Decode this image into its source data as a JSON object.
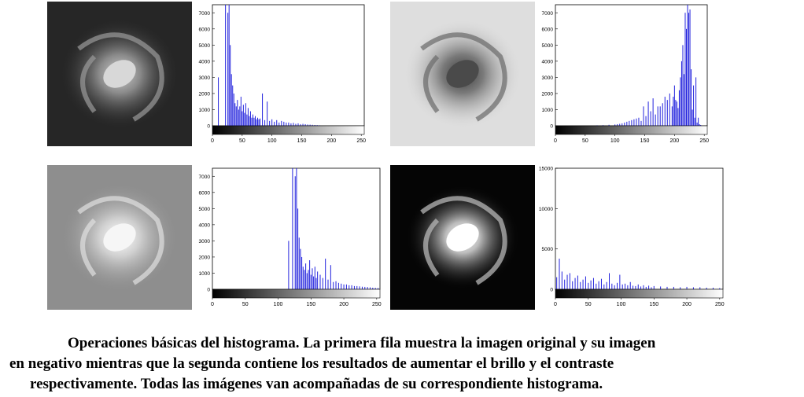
{
  "figure": {
    "caption_line1": "Operaciones básicas del histograma. La primera fila muestra la imagen original y su imagen",
    "caption_line2": "en negativo mientras que la segunda contiene los resultados de aumentar el brillo y el contraste",
    "caption_line3": "respectivamente. Todas las imágenes van acompañadas de su correspondiente histograma.",
    "panels": [
      {
        "id": "original",
        "photo_style": "dark",
        "bg": "#2a2a2a",
        "core": "#bdbdbd",
        "arm": "#7a7a7a"
      },
      {
        "id": "negativo",
        "photo_style": "inverted",
        "bg": "#dcdcdc",
        "core": "#555555",
        "arm": "#8a8a8a"
      },
      {
        "id": "brillo",
        "photo_style": "bright",
        "bg": "#8e8e8e",
        "core": "#f4f4f4",
        "arm": "#d6d6d6"
      },
      {
        "id": "contraste",
        "photo_style": "contrast",
        "bg": "#050505",
        "core": "#ffffff",
        "arm": "#b0b0b0"
      }
    ]
  },
  "chart_data": [
    {
      "type": "bar",
      "title": "",
      "xlabel": "",
      "ylabel": "",
      "xlim": [
        0,
        255
      ],
      "ylim": [
        0,
        7500
      ],
      "xticks": [
        "0",
        "50",
        "100",
        "150",
        "200",
        "250"
      ],
      "yticks": [
        "0",
        "1000",
        "2000",
        "3000",
        "4000",
        "5000",
        "6000",
        "7000"
      ],
      "bar_color": "#2222dd",
      "x": [
        10,
        22,
        26,
        28,
        30,
        32,
        34,
        36,
        38,
        40,
        42,
        44,
        46,
        48,
        50,
        52,
        54,
        56,
        58,
        60,
        62,
        64,
        66,
        68,
        70,
        72,
        74,
        76,
        78,
        80,
        84,
        88,
        92,
        96,
        100,
        104,
        108,
        112,
        116,
        120,
        124,
        128,
        132,
        136,
        140,
        144,
        148,
        152,
        156,
        160,
        164,
        168,
        172,
        176,
        180
      ],
      "values": [
        3000,
        7500,
        7000,
        7500,
        5000,
        3200,
        2500,
        2000,
        1400,
        1200,
        1600,
        1000,
        1200,
        1800,
        900,
        1300,
        800,
        1400,
        700,
        1100,
        600,
        900,
        500,
        700,
        500,
        600,
        400,
        500,
        400,
        450,
        2000,
        350,
        1500,
        300,
        400,
        250,
        350,
        200,
        300,
        250,
        200,
        200,
        150,
        180,
        120,
        150,
        100,
        120,
        100,
        80,
        70,
        60,
        50,
        40,
        30
      ]
    },
    {
      "type": "bar",
      "title": "",
      "xlabel": "",
      "ylabel": "",
      "xlim": [
        0,
        255
      ],
      "ylim": [
        0,
        7500
      ],
      "xticks": [
        "0",
        "50",
        "100",
        "150",
        "200",
        "250"
      ],
      "yticks": [
        "0",
        "1000",
        "2000",
        "3000",
        "4000",
        "5000",
        "6000",
        "7000"
      ],
      "bar_color": "#2222dd",
      "x": [
        70,
        80,
        90,
        100,
        104,
        108,
        112,
        116,
        120,
        124,
        128,
        132,
        136,
        140,
        144,
        148,
        152,
        156,
        160,
        164,
        168,
        172,
        176,
        180,
        184,
        188,
        192,
        196,
        198,
        200,
        202,
        204,
        206,
        208,
        210,
        212,
        214,
        216,
        218,
        220,
        222,
        224,
        226,
        228,
        230,
        232,
        234,
        236,
        238,
        240,
        242,
        244
      ],
      "values": [
        30,
        40,
        60,
        80,
        100,
        120,
        150,
        200,
        250,
        300,
        350,
        400,
        450,
        500,
        300,
        1200,
        600,
        1500,
        900,
        1700,
        700,
        1200,
        1200,
        1400,
        1800,
        1600,
        2000,
        1200,
        1800,
        2500,
        1600,
        1500,
        1100,
        2200,
        3000,
        4000,
        5000,
        3200,
        7000,
        6000,
        7500,
        7000,
        7200,
        3500,
        1000,
        2500,
        500,
        3000,
        200,
        500,
        100,
        50
      ]
    },
    {
      "type": "bar",
      "title": "",
      "xlabel": "",
      "ylabel": "",
      "xlim": [
        0,
        255
      ],
      "ylim": [
        0,
        7500
      ],
      "xticks": [
        "0",
        "50",
        "100",
        "150",
        "200",
        "250"
      ],
      "yticks": [
        "0",
        "1000",
        "2000",
        "3000",
        "4000",
        "5000",
        "6000",
        "7000"
      ],
      "bar_color": "#2222dd",
      "x": [
        116,
        122,
        126,
        128,
        130,
        132,
        134,
        136,
        138,
        140,
        142,
        144,
        146,
        148,
        150,
        152,
        154,
        156,
        158,
        160,
        164,
        168,
        172,
        176,
        180,
        184,
        188,
        192,
        196,
        200,
        204,
        208,
        212,
        216,
        220,
        224,
        228,
        232,
        236,
        240,
        244,
        248,
        252
      ],
      "values": [
        3000,
        7500,
        7000,
        7500,
        5000,
        3200,
        2500,
        2000,
        1400,
        1200,
        1600,
        1000,
        1200,
        1800,
        900,
        1300,
        800,
        1400,
        700,
        1100,
        900,
        700,
        1900,
        600,
        1500,
        450,
        500,
        400,
        350,
        300,
        300,
        250,
        250,
        200,
        200,
        180,
        160,
        150,
        140,
        120,
        100,
        90,
        80
      ]
    },
    {
      "type": "bar",
      "title": "",
      "xlabel": "",
      "ylabel": "",
      "xlim": [
        0,
        255
      ],
      "ylim": [
        0,
        15000
      ],
      "xticks": [
        "0",
        "50",
        "100",
        "150",
        "200",
        "250"
      ],
      "yticks": [
        "0",
        "5000",
        "10000",
        "15000"
      ],
      "bar_color": "#2222dd",
      "x": [
        2,
        6,
        10,
        14,
        18,
        22,
        26,
        30,
        34,
        38,
        42,
        46,
        50,
        54,
        58,
        62,
        66,
        70,
        74,
        78,
        82,
        86,
        90,
        94,
        98,
        102,
        106,
        110,
        114,
        118,
        122,
        126,
        130,
        134,
        138,
        142,
        146,
        150,
        160,
        170,
        180,
        190,
        200,
        210,
        220,
        230,
        240,
        250
      ],
      "values": [
        1500,
        3800,
        2200,
        1200,
        1800,
        2000,
        1000,
        1400,
        1700,
        900,
        1200,
        1600,
        800,
        1100,
        1400,
        700,
        1000,
        1300,
        600,
        900,
        2000,
        700,
        500,
        800,
        1800,
        600,
        700,
        500,
        900,
        450,
        400,
        600,
        350,
        500,
        300,
        450,
        250,
        400,
        350,
        300,
        300,
        250,
        300,
        250,
        250,
        200,
        200,
        150
      ]
    }
  ]
}
